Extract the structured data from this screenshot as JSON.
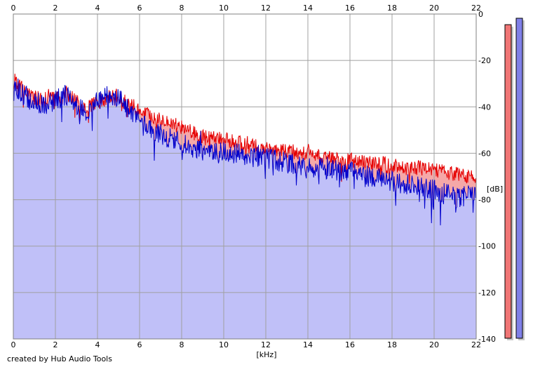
{
  "chart_data": {
    "type": "area",
    "xlabel": "[kHz]",
    "ylabel": "[dB]",
    "xlim": [
      0,
      22
    ],
    "ylim": [
      -140,
      0
    ],
    "x_ticks": [
      0,
      2,
      4,
      6,
      8,
      10,
      12,
      14,
      16,
      18,
      20,
      22
    ],
    "y_ticks": [
      0,
      -20,
      -40,
      -60,
      -80,
      -100,
      -120,
      -140
    ],
    "y_tick_labels": [
      "0",
      "-20",
      "-40",
      "-60",
      "-80",
      "-100",
      "-120",
      "-140"
    ],
    "grid": true,
    "x_step_khz": 0.025,
    "series": [
      {
        "color": "#e60000",
        "fill": "#f5a8a8",
        "envelope": {
          "x": [
            0,
            0.5,
            1,
            1.5,
            2,
            2.5,
            3,
            3.5,
            4,
            4.5,
            5,
            5.5,
            6,
            7,
            8,
            9,
            10,
            11,
            12,
            13,
            14,
            15,
            16,
            17,
            18,
            19,
            20,
            21,
            22
          ],
          "y": [
            -28,
            -33,
            -36,
            -37,
            -36,
            -34,
            -38,
            -40,
            -38,
            -36,
            -35,
            -38,
            -42,
            -45,
            -49,
            -53,
            -54,
            -56,
            -58,
            -59,
            -60,
            -62,
            -63,
            -64,
            -65,
            -66,
            -67,
            -69,
            -70
          ]
        },
        "noise_amplitude": 3.2,
        "seed": 7
      },
      {
        "color": "#0000cc",
        "fill": "#c0c0f8",
        "envelope": {
          "x": [
            0,
            0.5,
            1,
            1.5,
            2,
            2.5,
            3,
            3.5,
            4,
            4.5,
            5,
            5.5,
            6,
            7,
            8,
            9,
            10,
            11,
            12,
            13,
            14,
            15,
            16,
            17,
            18,
            19,
            20,
            21,
            22
          ],
          "y": [
            -30,
            -35,
            -38,
            -39,
            -37,
            -35,
            -40,
            -42,
            -38,
            -35,
            -36,
            -42,
            -47,
            -52,
            -56,
            -59,
            -59,
            -61,
            -62,
            -64,
            -66,
            -67,
            -68,
            -70,
            -72,
            -74,
            -76,
            -79,
            -78
          ]
        },
        "noise_amplitude": 4.6,
        "seed": 13
      }
    ],
    "level_meters": [
      {
        "color": "#f07575",
        "level": 0.98
      },
      {
        "color": "#8080e8",
        "level": 1.0
      }
    ],
    "grid_color": "#a0a0a0",
    "plot_background": "#ffffff"
  },
  "footer": {
    "credit": "created by Hub Audio Tools"
  }
}
